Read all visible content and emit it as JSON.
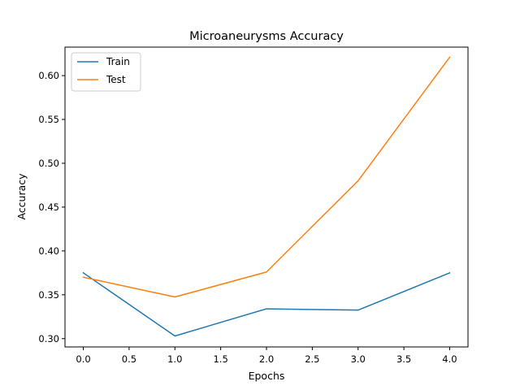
{
  "chart_data": {
    "type": "line",
    "title": "Microaneurysms Accuracy",
    "xlabel": "Epochs",
    "ylabel": "Accuracy",
    "x": [
      0,
      1,
      2,
      3,
      4
    ],
    "xlim": [
      -0.2,
      4.2
    ],
    "ylim": [
      0.2905,
      0.6325
    ],
    "xticks": [
      0.0,
      0.5,
      1.0,
      1.5,
      2.0,
      2.5,
      3.0,
      3.5,
      4.0
    ],
    "xtick_labels": [
      "0.0",
      "0.5",
      "1.0",
      "1.5",
      "2.0",
      "2.5",
      "3.0",
      "3.5",
      "4.0"
    ],
    "yticks": [
      0.3,
      0.35,
      0.4,
      0.45,
      0.5,
      0.55,
      0.6
    ],
    "ytick_labels": [
      "0.30",
      "0.35",
      "0.40",
      "0.45",
      "0.50",
      "0.55",
      "0.60"
    ],
    "grid": false,
    "legend_position": "top-left",
    "series": [
      {
        "name": "Train",
        "color": "#1f77b4",
        "values": [
          0.375,
          0.303,
          0.334,
          0.3325,
          0.375
        ]
      },
      {
        "name": "Test",
        "color": "#ff7f0e",
        "values": [
          0.37,
          0.3475,
          0.376,
          0.48,
          0.621
        ]
      }
    ]
  }
}
